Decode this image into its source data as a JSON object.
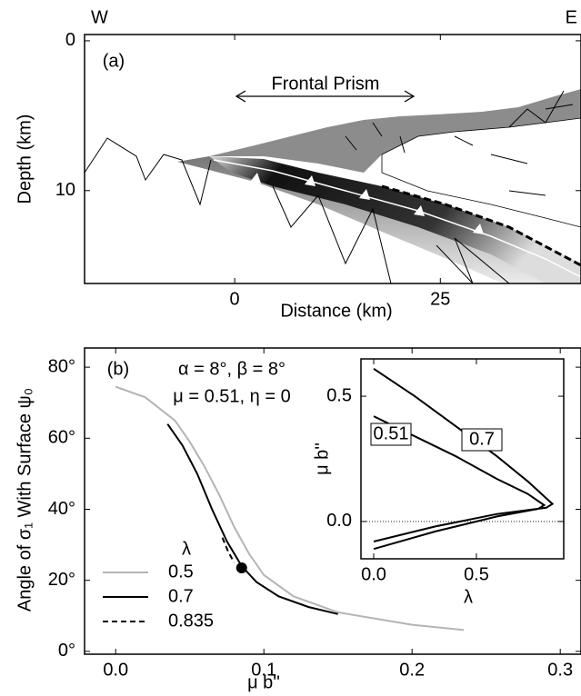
{
  "chart_data": [
    {
      "type": "section",
      "xlabel": "Distance (km)",
      "ylabel": "Depth (km)",
      "xlim": [
        -18.25,
        42.1
      ],
      "ylim": [
        16.2,
        -0.42
      ],
      "xticks": [
        0,
        25
      ],
      "yticks": [
        0,
        10
      ],
      "annotations": [
        "(a)",
        "W",
        "E",
        "Frontal Prism"
      ]
    },
    {
      "type": "line",
      "xlabel": "μ b''",
      "ylabel": "Angle of σ₁ With Surface ψ₀",
      "xlim": [
        -0.021,
        0.314
      ],
      "ylim": [
        -0.8,
        85.4
      ],
      "xticks": [
        {
          "value": 0,
          "label": "0.0"
        },
        0.1,
        0.2,
        0.3
      ],
      "yticks": [
        {
          "value": 0,
          "label": "0°"
        },
        {
          "value": 20,
          "label": "20°"
        },
        {
          "value": 40,
          "label": "40°"
        },
        {
          "value": 60,
          "label": "60°"
        },
        {
          "value": 80,
          "label": "80°"
        }
      ],
      "legend_title": "λ",
      "annotations": [
        "(b)",
        "α = 8°, β = 8°",
        "μ = 0.51, η = 0"
      ],
      "series": [
        {
          "name": "0.5",
          "color": "#b4b4b4",
          "dash": false,
          "x": [
            0.0,
            0.02,
            0.04,
            0.05,
            0.06,
            0.07,
            0.08,
            0.09,
            0.1,
            0.12,
            0.15,
            0.2,
            0.235
          ],
          "values": [
            74.5,
            71.5,
            65,
            59,
            52,
            44,
            35,
            27.5,
            21.5,
            15.5,
            11,
            7.5,
            6
          ]
        },
        {
          "name": "0.7",
          "color": "#000000",
          "dash": false,
          "x": [
            0.035,
            0.045,
            0.055,
            0.065,
            0.075,
            0.085,
            0.095,
            0.11,
            0.13,
            0.15
          ],
          "values": [
            64,
            58,
            50,
            40,
            31,
            24,
            19.5,
            15.5,
            12.5,
            10.5
          ]
        },
        {
          "name": "0.835",
          "color": "#000000",
          "dash": true,
          "x": [
            0.072,
            0.076,
            0.08
          ],
          "values": [
            32,
            28,
            25
          ]
        }
      ],
      "marker": {
        "x": 0.085,
        "y": 23.5
      }
    },
    {
      "type": "line",
      "xlabel": "λ",
      "ylabel": "μ b''",
      "xlim": [
        -0.062,
        0.925
      ],
      "ylim": [
        -0.149,
        0.649
      ],
      "xticks": [
        {
          "value": 0,
          "label": "0.0"
        },
        0.5
      ],
      "yticks": [
        {
          "value": 0,
          "label": "0.0"
        },
        0.5
      ],
      "zero_line": true,
      "series": [
        {
          "name": "0.51",
          "color": "#000000",
          "x": [
            0.0,
            0.2,
            0.4,
            0.6,
            0.75,
            0.83,
            0.8,
            0.6,
            0.3,
            0.0
          ],
          "values": [
            0.42,
            0.34,
            0.26,
            0.17,
            0.11,
            0.065,
            0.05,
            0.02,
            -0.04,
            -0.11
          ]
        },
        {
          "name": "0.7",
          "color": "#000000",
          "x": [
            0.0,
            0.2,
            0.4,
            0.6,
            0.75,
            0.87,
            0.84,
            0.6,
            0.3,
            0.0
          ],
          "values": [
            0.61,
            0.5,
            0.38,
            0.26,
            0.16,
            0.07,
            0.055,
            0.03,
            -0.02,
            -0.08
          ]
        }
      ]
    }
  ]
}
